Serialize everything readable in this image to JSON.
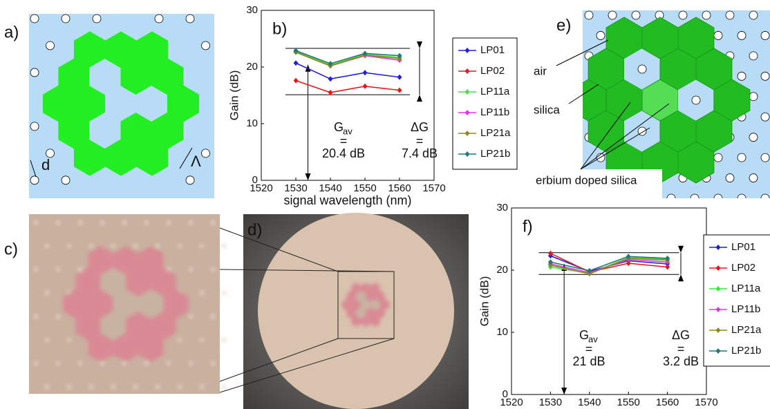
{
  "panels": {
    "a": {
      "label": "a)",
      "d": "d",
      "lambda": "Λ"
    },
    "c": {
      "label": "c)"
    },
    "d": {
      "label": "d)"
    },
    "e": {
      "label": "e)",
      "air": "air",
      "silica": "silica",
      "erbium": "erbium doped silica"
    }
  },
  "chart_data": [
    {
      "type": "line",
      "label": "b)",
      "x_label": "signal wavelength (nm)",
      "y_label": "Gain (dB)",
      "x": [
        1530,
        1540,
        1550,
        1560
      ],
      "xlim": [
        1520,
        1570
      ],
      "xticks": [
        1520,
        1530,
        1540,
        1550,
        1560,
        1570
      ],
      "ylim": [
        0,
        30
      ],
      "yticks": [
        0,
        10,
        20,
        30
      ],
      "ref_lines": [
        23.3,
        15.1
      ],
      "series": [
        {
          "name": "LP01",
          "color": "#1f1fe0",
          "values": [
            20.7,
            17.9,
            19.0,
            18.2
          ]
        },
        {
          "name": "LP02",
          "color": "#e81818",
          "values": [
            17.6,
            15.5,
            16.6,
            15.9
          ]
        },
        {
          "name": "LP11a",
          "color": "#3ce63c",
          "values": [
            22.7,
            20.4,
            22.2,
            21.7
          ]
        },
        {
          "name": "LP11b",
          "color": "#e632e6",
          "values": [
            22.6,
            20.2,
            22.0,
            21.2
          ]
        },
        {
          "name": "LP21a",
          "color": "#8a8a1e",
          "values": [
            22.6,
            20.2,
            22.1,
            21.5
          ]
        },
        {
          "name": "LP21b",
          "color": "#1e7a7a",
          "values": [
            22.9,
            20.6,
            22.4,
            22.0
          ]
        }
      ],
      "annotations": {
        "g": "G",
        "g_sub": "av",
        "g_eq": "=",
        "gav": {
          "value": 20.4,
          "label": "20.4 dB"
        },
        "dg": "ΔG",
        "dg_eq": "=",
        "dg_value": "7.4 dB"
      }
    },
    {
      "type": "line",
      "label": "f)",
      "x_label": "signal wavelength (nm)",
      "y_label": "Gain (dB)",
      "x": [
        1530,
        1540,
        1550,
        1560
      ],
      "xlim": [
        1520,
        1570
      ],
      "xticks": [
        1520,
        1530,
        1540,
        1550,
        1560,
        1570
      ],
      "ylim": [
        0,
        30
      ],
      "yticks": [
        0,
        10,
        20,
        30
      ],
      "ref_lines": [
        22.8,
        19.3
      ],
      "series": [
        {
          "name": "LP01",
          "color": "#1f1fe0",
          "values": [
            22.3,
            19.8,
            21.5,
            21.0
          ]
        },
        {
          "name": "LP02",
          "color": "#e81818",
          "values": [
            22.7,
            19.7,
            21.1,
            20.5
          ]
        },
        {
          "name": "LP11a",
          "color": "#3ce63c",
          "values": [
            20.5,
            19.5,
            22.0,
            21.8
          ]
        },
        {
          "name": "LP11b",
          "color": "#e632e6",
          "values": [
            21.0,
            19.6,
            21.7,
            21.3
          ]
        },
        {
          "name": "LP21a",
          "color": "#8a8a1e",
          "values": [
            20.8,
            19.4,
            21.9,
            21.6
          ]
        },
        {
          "name": "LP21b",
          "color": "#1e7a7a",
          "values": [
            21.3,
            19.9,
            22.2,
            21.9
          ]
        }
      ],
      "annotations": {
        "g": "G",
        "g_sub": "av",
        "g_eq": "=",
        "gav": {
          "value": 21,
          "label": "21 dB"
        },
        "dg": "ΔG",
        "dg_eq": "=",
        "dg_value": "3.2 dB"
      }
    }
  ]
}
